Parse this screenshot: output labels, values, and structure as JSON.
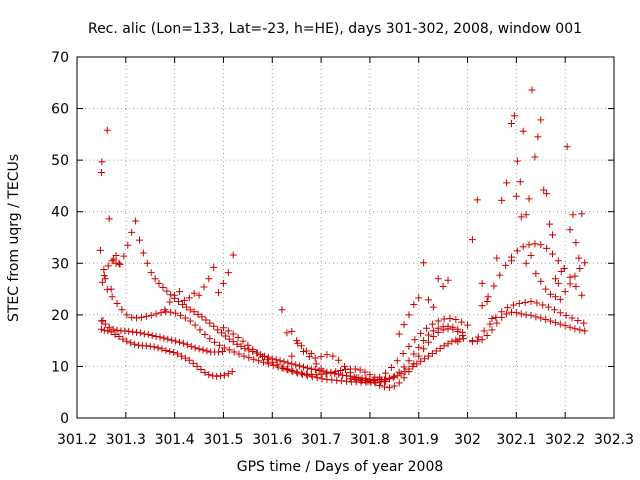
{
  "chart_data": {
    "type": "scatter",
    "title": "Rec. alic (Lon=133, Lat=-23, h=HE), days 301-302, 2008, window 001",
    "xlabel": "GPS time / Days of year 2008",
    "ylabel": "STEC from uqrg / TECUs",
    "xlim": [
      301.2,
      302.3
    ],
    "ylim": [
      0,
      70
    ],
    "xticks": [
      301.2,
      301.3,
      301.4,
      301.5,
      301.6,
      301.7,
      301.8,
      301.9,
      302,
      302.1,
      302.2,
      302.3
    ],
    "xtick_labels": [
      "301.2",
      "301.3",
      "301.4",
      "301.5",
      "301.6",
      "301.7",
      "301.8",
      "301.9",
      "302",
      "302.1",
      "302.2",
      "302.3"
    ],
    "yticks": [
      0,
      10,
      20,
      30,
      40,
      50,
      60,
      70
    ],
    "ytick_labels": [
      "0",
      "10",
      "20",
      "30",
      "40",
      "50",
      "60",
      "70"
    ],
    "grid": true,
    "legend": "none",
    "marker": "plus",
    "color": "#cc0000",
    "series": [
      {
        "name": "STEC",
        "x": [
          301.248,
          301.25,
          301.251,
          301.253,
          301.255,
          301.258,
          301.262,
          301.266,
          301.27,
          301.275,
          301.28,
          301.286,
          301.25,
          301.256,
          301.263,
          301.27,
          301.278,
          301.286,
          301.294,
          301.302,
          301.31,
          301.318,
          301.326,
          301.334,
          301.342,
          301.35,
          301.358,
          301.366,
          301.374,
          301.382,
          301.39,
          301.398,
          301.406,
          301.414,
          301.422,
          301.43,
          301.438,
          301.446,
          301.454,
          301.462,
          301.47,
          301.478,
          301.486,
          301.494,
          301.502,
          301.51,
          301.518,
          301.25,
          301.258,
          301.266,
          301.274,
          301.282,
          301.29,
          301.298,
          301.306,
          301.314,
          301.322,
          301.33,
          301.338,
          301.346,
          301.354,
          301.362,
          301.37,
          301.378,
          301.386,
          301.394,
          301.402,
          301.41,
          301.418,
          301.426,
          301.434,
          301.442,
          301.45,
          301.458,
          301.466,
          301.474,
          301.482,
          301.49,
          301.498,
          301.252,
          301.262,
          301.272,
          301.282,
          301.292,
          301.302,
          301.312,
          301.322,
          301.332,
          301.342,
          301.352,
          301.362,
          301.372,
          301.382,
          301.392,
          301.402,
          301.412,
          301.422,
          301.432,
          301.442,
          301.452,
          301.462,
          301.472,
          301.482,
          301.492,
          301.502,
          301.512,
          301.522,
          301.532,
          301.542,
          301.552,
          301.562,
          301.572,
          301.582,
          301.592,
          301.602,
          301.612,
          301.622,
          301.632,
          301.642,
          301.652,
          301.662,
          301.672,
          301.682,
          301.692,
          301.702,
          301.712,
          301.722,
          301.732,
          301.742,
          301.752,
          301.762,
          301.772,
          301.782,
          301.792,
          301.802,
          301.812,
          301.822,
          301.832,
          301.256,
          301.264,
          301.272,
          301.28,
          301.288,
          301.296,
          301.304,
          301.312,
          301.32,
          301.328,
          301.336,
          301.344,
          301.352,
          301.36,
          301.368,
          301.376,
          301.384,
          301.392,
          301.4,
          301.408,
          301.416,
          301.424,
          301.432,
          301.44,
          301.448,
          301.456,
          301.464,
          301.472,
          301.48,
          301.488,
          301.496,
          301.504,
          301.512,
          301.52,
          301.528,
          301.536,
          301.544,
          301.552,
          301.56,
          301.568,
          301.576,
          301.584,
          301.592,
          301.6,
          301.608,
          301.616,
          301.624,
          301.632,
          301.64,
          301.648,
          301.656,
          301.664,
          301.672,
          301.68,
          301.688,
          301.696,
          301.704,
          301.712,
          301.72,
          301.728,
          301.736,
          301.744,
          301.752,
          301.76,
          301.768,
          301.776,
          301.784,
          301.792,
          301.8,
          301.808,
          301.816,
          301.824,
          301.832,
          301.84,
          301.848,
          301.856,
          301.864,
          301.872,
          301.88,
          301.888,
          301.896,
          301.904,
          301.912,
          301.92,
          301.928,
          301.936,
          301.944,
          301.952,
          301.96,
          301.968,
          301.976,
          301.984,
          301.992,
          301.5,
          301.51,
          301.52,
          301.53,
          301.54,
          301.55,
          301.56,
          301.57,
          301.58,
          301.59,
          301.6,
          301.61,
          301.62,
          301.63,
          301.64,
          301.65,
          301.66,
          301.67,
          301.68,
          301.69,
          301.7,
          301.71,
          301.72,
          301.73,
          301.74,
          301.75,
          301.76,
          301.77,
          301.78,
          301.79,
          301.8,
          301.81,
          301.82,
          301.83,
          301.84,
          301.85,
          301.86,
          301.87,
          301.88,
          301.89,
          301.9,
          301.91,
          301.92,
          301.93,
          301.94,
          301.95,
          301.96,
          301.97,
          301.98,
          301.99,
          301.64,
          301.652,
          301.664,
          301.676,
          301.688,
          301.7,
          301.712,
          301.724,
          301.736,
          301.748,
          301.76,
          301.772,
          301.784,
          301.796,
          301.808,
          301.82,
          301.832,
          301.844,
          301.856,
          301.868,
          301.88,
          301.892,
          301.904,
          301.916,
          301.928,
          301.94,
          301.952,
          301.964,
          301.976,
          301.988,
          301.76,
          301.77,
          301.78,
          301.79,
          301.8,
          301.81,
          301.82,
          301.83,
          301.84,
          301.85,
          301.86,
          301.87,
          301.88,
          301.89,
          301.9,
          301.91,
          301.92,
          301.93,
          301.94,
          301.95,
          301.96,
          301.97,
          301.98,
          302.01,
          302.02,
          302.03,
          302.04,
          302.05,
          302.06,
          302.07,
          302.08,
          302.09,
          302.1,
          302.11,
          302.12,
          302.13,
          302.14,
          302.15,
          302.16,
          302.17,
          302.18,
          302.19,
          302.2,
          302.21,
          302.22,
          302.23,
          302.24,
          302.01,
          302.022,
          302.034,
          302.046,
          302.058,
          302.07,
          302.082,
          302.094,
          302.106,
          302.118,
          302.13,
          302.142,
          302.154,
          302.166,
          302.178,
          302.19,
          302.202,
          302.214,
          302.226,
          302.238,
          302.03,
          302.042,
          302.054,
          302.066,
          302.078,
          302.09,
          302.102,
          302.114,
          302.126,
          302.138,
          302.15,
          302.162,
          302.174,
          302.186,
          302.198,
          302.21,
          302.222,
          302.234,
          302.09,
          302.096,
          302.102,
          302.108,
          302.114,
          302.12,
          302.126,
          302.132,
          302.138,
          302.144,
          302.15,
          302.156,
          302.162,
          302.168,
          302.174,
          302.18,
          302.186,
          302.192,
          302.198,
          302.204,
          302.21,
          302.216,
          302.222,
          302.228,
          302.234,
          302.24,
          302.07,
          302.08,
          302.09,
          302.1,
          302.11,
          302.12,
          302.13,
          302.14,
          302.15,
          302.16,
          302.17,
          302.18,
          302.19,
          302.2,
          302.21,
          302.22,
          302.23,
          301.38,
          301.39,
          301.4,
          301.41,
          301.42,
          301.43,
          301.44,
          301.45,
          301.46,
          301.47,
          301.48,
          301.49,
          301.5,
          301.51,
          301.52,
          301.98,
          301.99,
          302.0,
          302.01,
          302.02,
          302.03,
          302.04,
          302.05,
          302.06,
          301.86,
          301.87,
          301.88,
          301.89,
          301.9,
          301.91,
          301.92,
          301.93,
          301.94,
          301.95,
          301.96,
          301.62,
          301.63,
          301.64,
          301.65,
          301.66,
          301.67,
          301.68,
          301.69,
          301.7
        ],
        "y": [
          32.5,
          47.6,
          49.7,
          18.9,
          28.8,
          27.0,
          55.8,
          38.6,
          25.0,
          30.8,
          31.5,
          30.0,
          17.2,
          17.0,
          16.9,
          16.7,
          16.2,
          15.8,
          15.3,
          14.9,
          14.6,
          14.3,
          14.1,
          14.0,
          14.0,
          13.9,
          13.8,
          13.6,
          13.4,
          13.1,
          12.9,
          12.7,
          12.4,
          12.0,
          11.6,
          11.2,
          10.6,
          10.0,
          9.4,
          8.8,
          8.4,
          8.2,
          8.1,
          8.2,
          8.3,
          8.6,
          9.0,
          18.8,
          18.2,
          17.6,
          17.2,
          17.0,
          16.9,
          16.9,
          16.8,
          16.7,
          16.6,
          16.5,
          16.3,
          16.2,
          16.0,
          15.8,
          15.7,
          15.5,
          15.3,
          15.1,
          14.9,
          14.7,
          14.5,
          14.2,
          13.9,
          13.6,
          13.4,
          13.2,
          13.0,
          12.8,
          12.8,
          12.8,
          12.9,
          26.3,
          24.9,
          23.5,
          22.2,
          21.0,
          20.0,
          19.5,
          19.4,
          19.5,
          19.7,
          19.9,
          20.2,
          20.4,
          20.6,
          20.5,
          20.3,
          19.9,
          19.4,
          18.8,
          18.0,
          17.1,
          16.2,
          15.4,
          14.7,
          14.1,
          13.6,
          13.2,
          12.8,
          12.4,
          12.0,
          11.7,
          11.4,
          11.1,
          10.8,
          10.5,
          10.2,
          9.9,
          9.6,
          9.3,
          9.0,
          8.7,
          8.4,
          8.2,
          8.0,
          7.8,
          7.6,
          7.5,
          7.4,
          7.3,
          7.2,
          7.1,
          7.0,
          7.0,
          6.9,
          6.9,
          6.9,
          6.9,
          7.0,
          7.1,
          27.6,
          29.5,
          30.5,
          30.0,
          29.8,
          31.4,
          33.5,
          36.0,
          38.2,
          34.5,
          32.0,
          30.0,
          28.2,
          27.0,
          26.1,
          25.3,
          24.6,
          23.9,
          23.2,
          22.6,
          22.0,
          21.5,
          21.0,
          20.6,
          20.1,
          19.6,
          19.0,
          18.4,
          17.8,
          17.1,
          16.5,
          15.9,
          15.3,
          14.8,
          14.3,
          13.9,
          13.5,
          13.2,
          12.9,
          12.6,
          12.3,
          12.0,
          11.8,
          11.5,
          11.3,
          11.1,
          10.9,
          10.7,
          10.5,
          10.3,
          10.1,
          9.9,
          9.7,
          9.5,
          9.4,
          9.2,
          9.1,
          8.9,
          8.8,
          8.6,
          8.5,
          8.3,
          8.2,
          8.1,
          7.9,
          7.8,
          7.7,
          7.6,
          7.5,
          7.4,
          7.4,
          7.4,
          7.5,
          7.7,
          7.9,
          8.2,
          8.6,
          9.0,
          9.5,
          10.0,
          10.5,
          11.0,
          11.5,
          12.0,
          12.5,
          13.0,
          13.5,
          14.0,
          14.4,
          14.8,
          15.1,
          15.3,
          15.4,
          17.5,
          16.9,
          16.3,
          15.6,
          14.9,
          14.1,
          13.3,
          12.6,
          11.9,
          11.3,
          10.8,
          10.3,
          9.9,
          9.5,
          9.2,
          8.9,
          8.7,
          8.5,
          8.4,
          8.4,
          8.5,
          8.6,
          8.8,
          9.0,
          9.2,
          9.4,
          9.5,
          9.5,
          9.3,
          8.9,
          8.4,
          7.9,
          7.5,
          7.4,
          7.6,
          8.1,
          8.9,
          9.9,
          11.1,
          12.4,
          13.7,
          15.0,
          16.1,
          16.9,
          17.4,
          17.7,
          17.8,
          17.6,
          17.2,
          16.6,
          16.8,
          14.5,
          12.9,
          11.9,
          11.6,
          11.9,
          12.3,
          12.0,
          11.2,
          10.0,
          8.8,
          7.8,
          7.3,
          7.1,
          7.3,
          7.9,
          8.7,
          9.8,
          11.1,
          12.5,
          13.9,
          15.2,
          16.4,
          17.4,
          18.2,
          18.8,
          19.2,
          19.3,
          19.1,
          18.6,
          7.6,
          7.5,
          7.4,
          7.3,
          7.2,
          6.8,
          6.3,
          6.0,
          5.9,
          6.2,
          6.8,
          7.8,
          9.0,
          10.5,
          12.0,
          13.4,
          14.7,
          15.8,
          16.6,
          17.1,
          17.3,
          17.2,
          16.8,
          15.0,
          14.9,
          15.2,
          16.0,
          17.1,
          18.4,
          19.5,
          20.2,
          20.5,
          20.4,
          20.2,
          20.0,
          19.9,
          19.6,
          19.4,
          19.1,
          18.8,
          18.5,
          18.2,
          17.9,
          17.6,
          17.3,
          17.1,
          16.9,
          14.8,
          15.7,
          16.9,
          18.2,
          19.5,
          20.6,
          21.4,
          21.9,
          22.2,
          22.4,
          22.6,
          22.3,
          21.9,
          21.5,
          21.0,
          20.4,
          19.9,
          19.4,
          18.9,
          18.4,
          21.8,
          23.5,
          25.6,
          27.7,
          29.6,
          31.2,
          32.4,
          33.2,
          33.6,
          33.8,
          33.6,
          32.9,
          31.8,
          30.5,
          29.0,
          27.3,
          25.5,
          23.8,
          57.1,
          58.6,
          49.8,
          45.8,
          55.6,
          39.4,
          42.5,
          63.6,
          50.6,
          54.5,
          57.8,
          44.2,
          43.5,
          37.6,
          35.5,
          27.0,
          26.1,
          28.4,
          29.0,
          52.6,
          36.5,
          39.4,
          34.0,
          31.0,
          39.6,
          30.1,
          42.2,
          45.6,
          30.5,
          43.0,
          39.0,
          30.0,
          31.5,
          28.0,
          26.5,
          25.0,
          24.0,
          23.5,
          23.0,
          24.5,
          26.0,
          27.5,
          29.0,
          21.0,
          22.5,
          23.8,
          24.5,
          22.8,
          23.3,
          24.2,
          23.8,
          25.4,
          27.0,
          29.2,
          24.3,
          26.1,
          28.2,
          31.6,
          14.8,
          16.0,
          18.0,
          34.6,
          42.3,
          26.1,
          22.6,
          19.3,
          31.0,
          16.3,
          18.1,
          20.0,
          22.0,
          23.3,
          30.1,
          22.9,
          21.5,
          27.0,
          25.5,
          26.7,
          21.0,
          16.5,
          12.0,
          15.0,
          14.0,
          13.0,
          12.5,
          10.5,
          9.5
        ]
      }
    ]
  }
}
